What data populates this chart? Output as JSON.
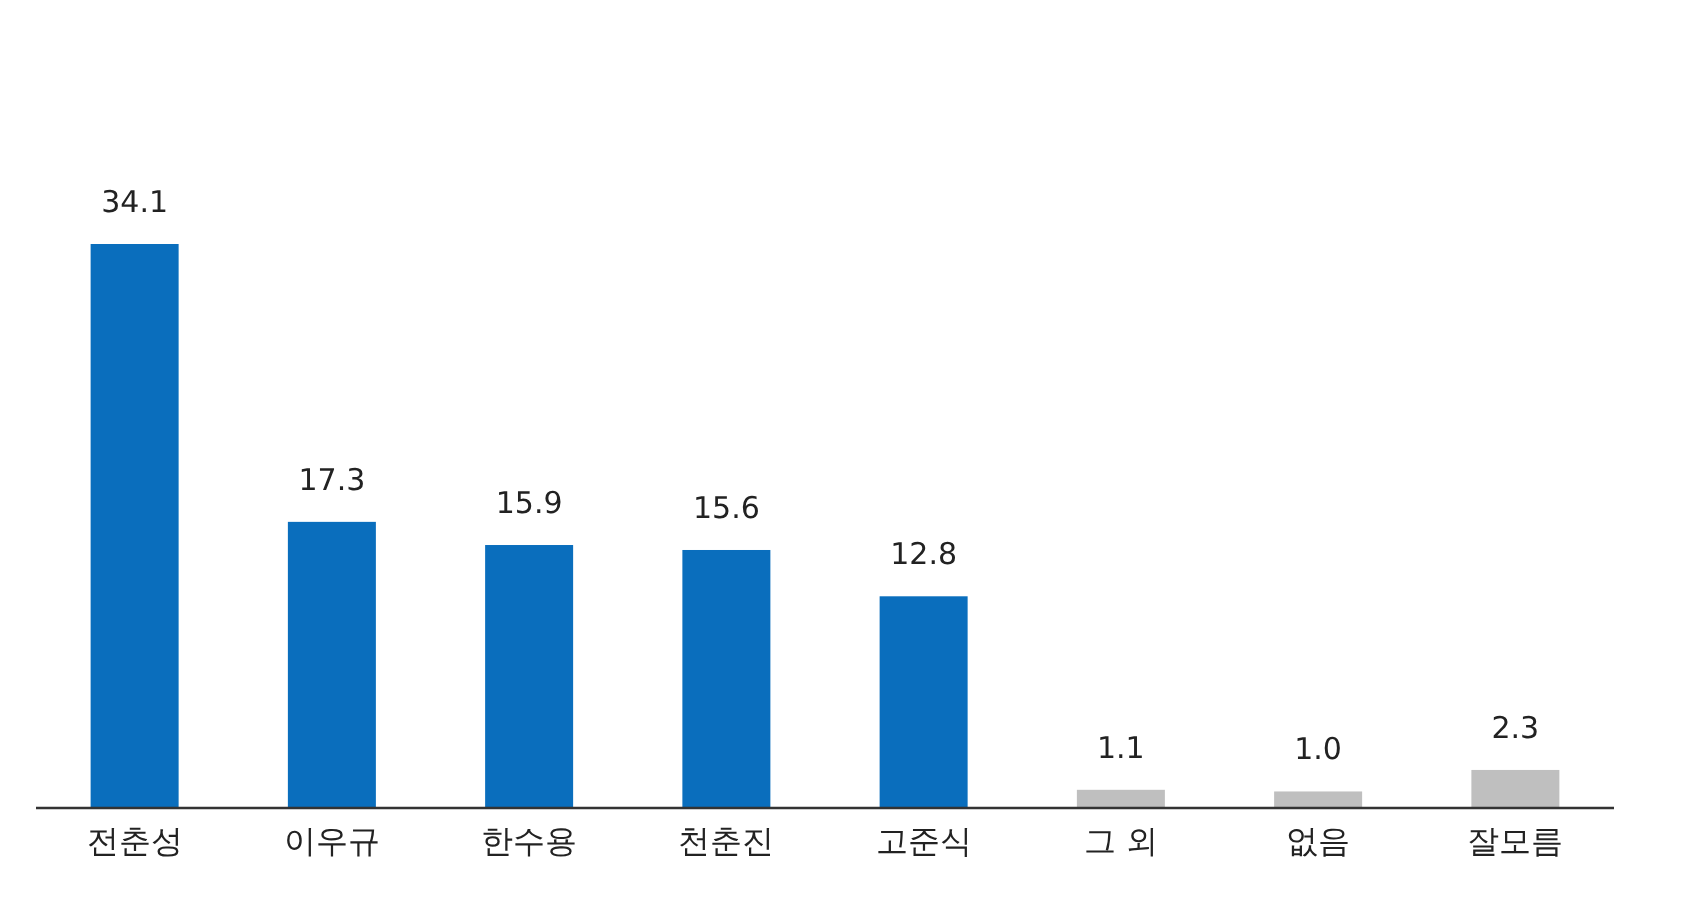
{
  "chart_data": {
    "type": "bar",
    "categories": [
      "전춘성",
      "이우규",
      "한수용",
      "천춘진",
      "고준식",
      "그 외",
      "없음",
      "잘모름"
    ],
    "values": [
      34.1,
      17.3,
      15.9,
      15.6,
      12.8,
      1.1,
      1.0,
      2.3
    ],
    "colors": [
      "#0a6ebd",
      "#0a6ebd",
      "#0a6ebd",
      "#0a6ebd",
      "#0a6ebd",
      "#bfbfbf",
      "#bfbfbf",
      "#bfbfbf"
    ],
    "value_labels": [
      "34.1",
      "17.3",
      "15.9",
      "15.6",
      "12.8",
      "1.1",
      "1.0",
      "2.3"
    ]
  }
}
